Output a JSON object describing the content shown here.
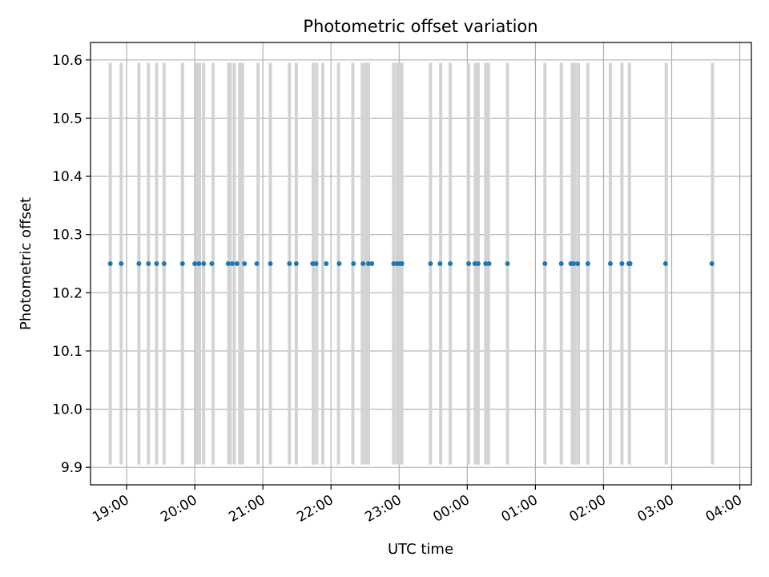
{
  "chart_data": {
    "type": "scatter",
    "title": "Photometric offset variation",
    "xlabel": "UTC time",
    "ylabel": "Photometric offset",
    "x_unit": "hours",
    "xlim": [
      18.47,
      28.17
    ],
    "ylim": [
      9.87,
      10.63
    ],
    "grid": true,
    "colors": {
      "points": "#1f77b4",
      "bars": "#d3d3d3",
      "grid": "#b0b0b0",
      "axes": "#000000"
    },
    "x_ticks": [
      {
        "value": 19,
        "label": "19:00"
      },
      {
        "value": 20,
        "label": "20:00"
      },
      {
        "value": 21,
        "label": "21:00"
      },
      {
        "value": 22,
        "label": "22:00"
      },
      {
        "value": 23,
        "label": "23:00"
      },
      {
        "value": 24,
        "label": "00:00"
      },
      {
        "value": 25,
        "label": "01:00"
      },
      {
        "value": 26,
        "label": "02:00"
      },
      {
        "value": 27,
        "label": "03:00"
      },
      {
        "value": 28,
        "label": "04:00"
      }
    ],
    "y_ticks": [
      {
        "value": 9.9,
        "label": "9.9"
      },
      {
        "value": 10.0,
        "label": "10.0"
      },
      {
        "value": 10.1,
        "label": "10.1"
      },
      {
        "value": 10.2,
        "label": "10.2"
      },
      {
        "value": 10.3,
        "label": "10.3"
      },
      {
        "value": 10.4,
        "label": "10.4"
      },
      {
        "value": 10.5,
        "label": "10.5"
      },
      {
        "value": 10.6,
        "label": "10.6"
      }
    ],
    "bar_range": [
      9.905,
      10.595
    ],
    "bars_x": [
      18.76,
      18.92,
      19.18,
      19.32,
      19.44,
      19.55,
      19.82,
      20.03,
      20.07,
      20.13,
      20.27,
      20.5,
      20.52,
      20.58,
      20.66,
      20.7,
      20.93,
      21.11,
      21.39,
      21.49,
      21.74,
      21.79,
      21.88,
      22.11,
      22.32,
      22.46,
      22.51,
      22.55,
      22.92,
      22.97,
      23.01,
      23.04,
      23.46,
      23.61,
      23.75,
      24.02,
      24.12,
      24.16,
      24.27,
      24.31,
      24.59,
      25.14,
      25.38,
      25.54,
      25.58,
      25.63,
      25.77,
      26.1,
      26.27,
      26.38,
      26.92,
      27.6
    ],
    "series": [
      {
        "x": [
          18.76,
          18.92,
          19.18,
          19.32,
          19.44,
          19.55,
          19.82,
          20.0,
          20.06,
          20.13,
          20.25,
          20.49,
          20.55,
          20.62,
          20.73,
          20.91,
          21.11,
          21.39,
          21.49,
          21.73,
          21.78,
          21.93,
          22.12,
          22.33,
          22.47,
          22.55,
          22.6,
          22.92,
          22.97,
          23.01,
          23.04,
          23.46,
          23.6,
          23.75,
          24.02,
          24.11,
          24.16,
          24.27,
          24.32,
          24.59,
          25.14,
          25.38,
          25.52,
          25.56,
          25.62,
          25.77,
          26.1,
          26.27,
          26.37,
          26.39,
          26.91,
          27.59
        ],
        "y": [
          10.25,
          10.25,
          10.25,
          10.25,
          10.25,
          10.25,
          10.25,
          10.25,
          10.25,
          10.25,
          10.25,
          10.25,
          10.25,
          10.25,
          10.25,
          10.25,
          10.25,
          10.25,
          10.25,
          10.25,
          10.25,
          10.25,
          10.25,
          10.25,
          10.25,
          10.25,
          10.25,
          10.25,
          10.25,
          10.25,
          10.25,
          10.25,
          10.25,
          10.25,
          10.25,
          10.25,
          10.25,
          10.25,
          10.25,
          10.25,
          10.25,
          10.25,
          10.25,
          10.25,
          10.25,
          10.25,
          10.25,
          10.25,
          10.25,
          10.25,
          10.25,
          10.25
        ]
      }
    ]
  }
}
